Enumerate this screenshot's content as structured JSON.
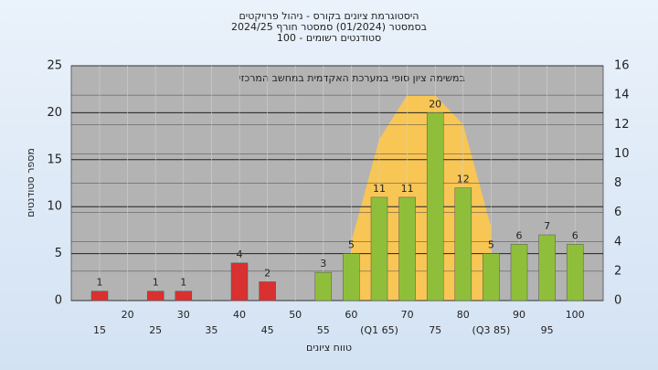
{
  "chart_data": {
    "type": "bar",
    "title": [
      "היסטוגרמת ציונים בקורס - ניהול פרויקטים",
      "בסמסטר  (01/2024)  סמסטר חורף 2024/25",
      "סטודנטים רשומים - 100"
    ],
    "annotation": "במשימה  ציון סופי במערכת האקדמית במחשב המרכזי",
    "x_label": "טווח ציונים",
    "y_label": "מספר סטודנטים",
    "categories": [
      "15",
      "20",
      "25",
      "30",
      "35",
      "40",
      "45",
      "50",
      "55",
      "60",
      "(Q1 65)",
      "70",
      "75",
      "80",
      "(Q3 85)",
      "90",
      "95",
      "100"
    ],
    "values": [
      1,
      null,
      1,
      1,
      null,
      4,
      2,
      null,
      3,
      5,
      11,
      11,
      20,
      12,
      5,
      6,
      7,
      6
    ],
    "colors": [
      "#d93030",
      "#d93030",
      "#d93030",
      "#d93030",
      "#d93030",
      "#d93030",
      "#d93030",
      "#d93030",
      "#8fbf3a",
      "#8fbf3a",
      "#8fbf3a",
      "#8fbf3a",
      "#8fbf3a",
      "#8fbf3a",
      "#8fbf3a",
      "#8fbf3a",
      "#8fbf3a",
      "#8fbf3a"
    ],
    "area": {
      "axis": "y2",
      "color": "#ffc84a",
      "start": 9,
      "values": [
        4,
        11,
        14,
        14,
        12,
        5
      ]
    },
    "ylim": [
      0,
      25
    ],
    "yticks": [
      0,
      5,
      10,
      15,
      20,
      25
    ],
    "y2lim": [
      0,
      16
    ],
    "y2ticks": [
      0,
      2,
      4,
      6,
      8,
      10,
      12,
      14,
      16
    ],
    "grid": true
  }
}
